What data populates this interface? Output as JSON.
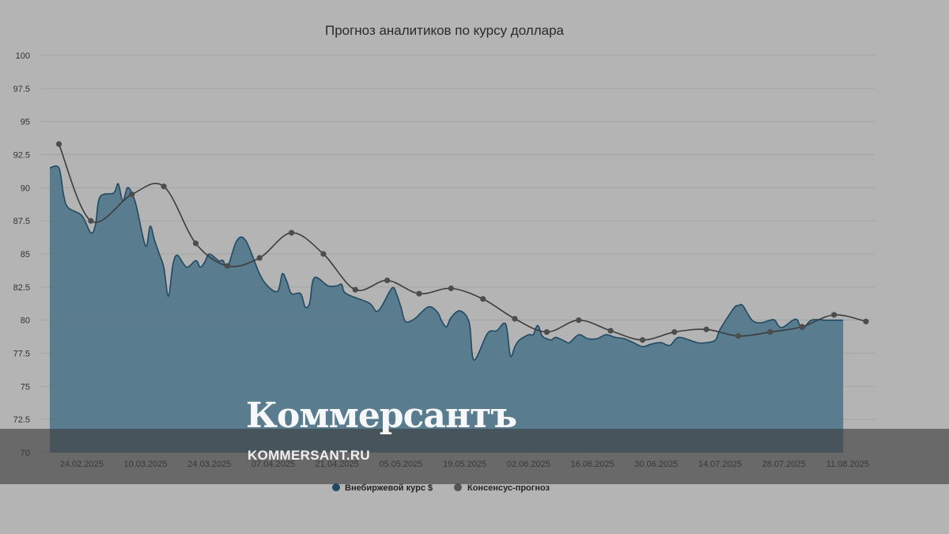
{
  "chart_data": {
    "type": "area",
    "title": "Прогноз аналитиков по курсу доллара",
    "ylim": [
      70,
      100
    ],
    "yticks": [
      "100",
      "97.5",
      "95",
      "92.5",
      "90",
      "87.5",
      "85",
      "82.5",
      "80",
      "77.5",
      "75",
      "72.5",
      "70"
    ],
    "xticks": [
      "24.02.2025",
      "10.03.2025",
      "24.03.2025",
      "07.04.2025",
      "21.04.2025",
      "05.05.2025",
      "19.05.2025",
      "02.06.2025",
      "16.06.2025",
      "30.06.2025",
      "14.07.2025",
      "28.07.2025",
      "11.08.2025"
    ],
    "grid": true,
    "legend_position": "bottom-center",
    "series": [
      {
        "name": "Внебиржевой курс $",
        "type": "area",
        "color": "#4a7288",
        "x": [
          "17.02.2025",
          "19.02.2025",
          "20.02.2025",
          "21.02.2025",
          "24.02.2025",
          "26.02.2025",
          "27.02.2025",
          "28.02.2025",
          "03.03.2025",
          "04.03.2025",
          "05.03.2025",
          "06.03.2025",
          "07.03.2025",
          "08.03.2025",
          "10.03.2025",
          "11.03.2025",
          "12.03.2025",
          "13.03.2025",
          "14.03.2025",
          "15.03.2025",
          "16.03.2025",
          "17.03.2025",
          "19.03.2025",
          "21.03.2025",
          "22.03.2025",
          "23.03.2025",
          "24.03.2025",
          "26.03.2025",
          "27.03.2025",
          "28.03.2025",
          "30.03.2025",
          "01.04.2025",
          "04.04.2025",
          "06.04.2025",
          "08.04.2025",
          "09.04.2025",
          "10.04.2025",
          "11.04.2025",
          "13.04.2025",
          "14.04.2025",
          "15.04.2025",
          "16.04.2025",
          "19.04.2025",
          "21.04.2025",
          "22.04.2025",
          "23.04.2025",
          "28.04.2025",
          "30.04.2025",
          "03.05.2025",
          "04.05.2025",
          "05.05.2025",
          "06.05.2025",
          "08.05.2025",
          "11.05.2025",
          "13.05.2025",
          "14.05.2025",
          "15.05.2025",
          "16.05.2025",
          "18.05.2025",
          "20.05.2025",
          "21.05.2025",
          "24.05.2025",
          "26.05.2025",
          "28.05.2025",
          "29.05.2025",
          "30.05.2025",
          "31.05.2025",
          "02.06.2025",
          "03.06.2025",
          "04.06.2025",
          "05.06.2025",
          "06.06.2025",
          "07.06.2025",
          "08.06.2025",
          "10.06.2025",
          "11.06.2025",
          "13.06.2025",
          "15.06.2025",
          "17.06.2025",
          "19.06.2025",
          "21.06.2025",
          "23.06.2025",
          "25.06.2025",
          "27.06.2025",
          "29.06.2025",
          "01.07.2025",
          "03.07.2025",
          "05.07.2025",
          "09.07.2025",
          "11.07.2025",
          "13.07.2025",
          "14.07.2025",
          "17.07.2025",
          "18.07.2025",
          "19.07.2025",
          "21.07.2025",
          "23.07.2025",
          "25.07.2025",
          "26.07.2025",
          "27.07.2025",
          "28.07.2025",
          "30.07.2025",
          "31.07.2025",
          "01.08.2025",
          "03.08.2025",
          "06.08.2025",
          "08.08.2025",
          "09.08.2025",
          "10.08.2025"
        ],
        "values": [
          91.5,
          91.5,
          89.5,
          88.5,
          87.9,
          86.6,
          87.2,
          89.3,
          89.6,
          90.3,
          89.0,
          90.0,
          89.6,
          88.6,
          85.6,
          87.1,
          86.0,
          85.0,
          84.0,
          81.8,
          84.2,
          84.9,
          84.0,
          84.5,
          84.0,
          84.4,
          85.0,
          84.5,
          84.5,
          84.0,
          86.0,
          86.0,
          83.5,
          82.5,
          82.2,
          83.5,
          82.9,
          82.0,
          82.0,
          81.0,
          81.3,
          83.2,
          82.6,
          82.6,
          82.7,
          82.0,
          81.3,
          80.7,
          82.4,
          82.0,
          81.0,
          79.9,
          80.1,
          81.0,
          80.6,
          79.9,
          79.5,
          80.2,
          80.7,
          79.8,
          77.0,
          79.0,
          79.2,
          79.7,
          77.3,
          78.0,
          78.5,
          78.9,
          78.9,
          79.6,
          78.8,
          78.6,
          78.5,
          78.7,
          78.4,
          78.3,
          78.9,
          78.6,
          78.6,
          78.9,
          78.7,
          78.6,
          78.3,
          78.0,
          78.2,
          78.3,
          78.1,
          78.7,
          78.3,
          78.3,
          78.5,
          79.3,
          80.9,
          81.1,
          81.1,
          80.0,
          79.8,
          80.0,
          80.0,
          79.5,
          79.5,
          80.0,
          80.0,
          79.3,
          80.0,
          80.0,
          80.0,
          80.0,
          80.0
        ]
      },
      {
        "name": "Консенсус-прогноз",
        "type": "line",
        "color": "#555555",
        "x": [
          "19.02.2025",
          "26.02.2025",
          "07.03.2025",
          "14.03.2025",
          "21.03.2025",
          "28.03.2025",
          "04.04.2025",
          "11.04.2025",
          "18.04.2025",
          "25.04.2025",
          "02.05.2025",
          "09.05.2025",
          "16.05.2025",
          "23.05.2025",
          "30.05.2025",
          "06.06.2025",
          "13.06.2025",
          "20.06.2025",
          "27.06.2025",
          "04.07.2025",
          "11.07.2025",
          "18.07.2025",
          "25.07.2025",
          "01.08.2025",
          "08.08.2025",
          "15.08.2025"
        ],
        "values": [
          93.3,
          87.5,
          89.5,
          90.1,
          85.8,
          84.1,
          84.7,
          86.6,
          85.0,
          82.3,
          83.0,
          82.0,
          82.4,
          81.6,
          80.1,
          79.1,
          80.0,
          79.2,
          78.5,
          79.1,
          79.3,
          78.8,
          79.1,
          79.5,
          80.4,
          79.9
        ]
      }
    ]
  },
  "watermark": {
    "logo": "Коммерсантъ",
    "url": "KOMMERSANT.RU"
  }
}
